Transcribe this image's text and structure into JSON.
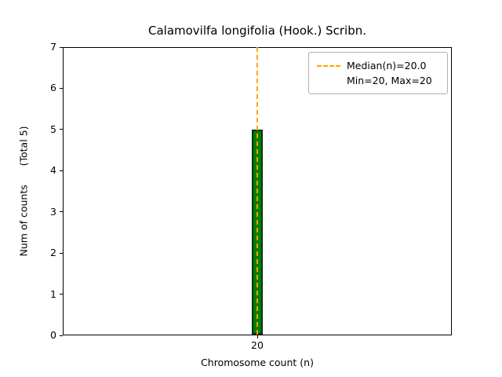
{
  "chart_data": {
    "type": "bar",
    "title": "Calamovilfa longifolia (Hook.) Scribn.",
    "xlabel": "Chromosome count (n)",
    "ylabel": "Num of counts",
    "ylabel_suffix": "(Total 5)",
    "categories": [
      "20"
    ],
    "values": [
      5
    ],
    "ylim": [
      0,
      7
    ],
    "yticks": [
      0,
      1,
      2,
      3,
      4,
      5,
      6,
      7
    ],
    "median": 20.0,
    "min": 20,
    "max": 20,
    "legend": [
      "Median(n)=20.0",
      "Min=20, Max=20"
    ],
    "legend_position": "upper right",
    "grid": false,
    "colors": {
      "bar_fill": "#008000",
      "bar_edge": "#0b2e13",
      "median_line": "#ffa500"
    }
  }
}
